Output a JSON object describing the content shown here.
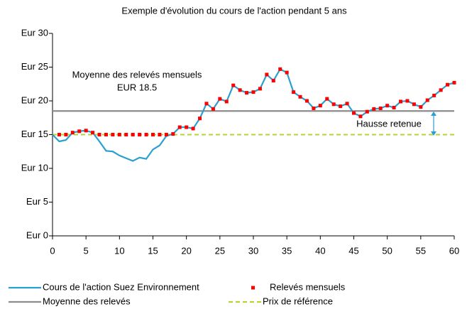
{
  "chart_data": {
    "type": "line",
    "title": "Exemple d'évolution du cours de l'action pendant 5 ans",
    "annotations": [
      "Moyenne des relevés mensuels",
      "EUR 18.5",
      "Hausse retenue"
    ],
    "xlim": [
      0,
      60
    ],
    "xticks": [
      0,
      5,
      10,
      15,
      20,
      25,
      30,
      35,
      40,
      45,
      50,
      55,
      60
    ],
    "ylim": [
      0,
      30
    ],
    "yticks": [
      {
        "value": 0,
        "label": "Eur 0"
      },
      {
        "value": 5,
        "label": "Eur 5"
      },
      {
        "value": 10,
        "label": "Eur 10"
      },
      {
        "value": 15,
        "label": "Eur 15"
      },
      {
        "value": 20,
        "label": "Eur 20"
      },
      {
        "value": 25,
        "label": "Eur 25"
      },
      {
        "value": 30,
        "label": "Eur 30"
      }
    ],
    "series": [
      {
        "name": "Cours de l'action Suez Environnement",
        "color": "#2a9fd0",
        "style": "line",
        "x": [
          0,
          1,
          2,
          3,
          4,
          5,
          6,
          7,
          8,
          9,
          10,
          11,
          12,
          13,
          14,
          15,
          16,
          17,
          18,
          19,
          20,
          21,
          22,
          23,
          24,
          25,
          26,
          27,
          28,
          29,
          30,
          31,
          32,
          33,
          34,
          35,
          36,
          37,
          38,
          39,
          40,
          41,
          42,
          43,
          44,
          45,
          46,
          47,
          48,
          49,
          50,
          51,
          52,
          53,
          54,
          55,
          56,
          57,
          58,
          59,
          60
        ],
        "values": [
          15,
          14,
          14.2,
          15.3,
          15.5,
          15.6,
          15.3,
          14,
          12.6,
          12.5,
          11.9,
          11.5,
          11.1,
          11.6,
          11.4,
          12.8,
          13.4,
          14.8,
          15.1,
          16.1,
          16.1,
          15.9,
          17.4,
          19.6,
          18.8,
          20.3,
          19.9,
          22.3,
          21.6,
          21.2,
          21.3,
          21.8,
          23.9,
          23,
          24.7,
          24.2,
          21.3,
          20.6,
          20,
          18.9,
          19.3,
          20.3,
          19.5,
          19.2,
          19.6,
          18.2,
          17.7,
          18.4,
          18.8,
          18.9,
          19.3,
          19,
          19.9,
          20,
          19.5,
          19.1,
          20.1,
          20.8,
          21.6,
          22.4,
          22.7
        ]
      },
      {
        "name": "Relevés mensuels",
        "color": "#ff0000",
        "style": "markers",
        "x": [
          1,
          2,
          3,
          4,
          5,
          6,
          7,
          8,
          9,
          10,
          11,
          12,
          13,
          14,
          15,
          16,
          17,
          18,
          19,
          20,
          21,
          22,
          23,
          24,
          25,
          26,
          27,
          28,
          29,
          30,
          31,
          32,
          33,
          34,
          35,
          36,
          37,
          38,
          39,
          40,
          41,
          42,
          43,
          44,
          45,
          46,
          47,
          48,
          49,
          50,
          51,
          52,
          53,
          54,
          55,
          56,
          57,
          58,
          59,
          60
        ],
        "values": [
          15,
          15,
          15.3,
          15.5,
          15.6,
          15.3,
          15,
          15,
          15,
          15,
          15,
          15,
          15,
          15,
          15,
          15,
          15,
          15.1,
          16.1,
          16.1,
          15.9,
          17.4,
          19.6,
          18.8,
          20.3,
          19.9,
          22.3,
          21.6,
          21.2,
          21.3,
          21.8,
          23.9,
          23,
          24.7,
          24.2,
          21.3,
          20.6,
          20,
          18.9,
          19.3,
          20.3,
          19.5,
          19.2,
          19.6,
          18.2,
          17.7,
          18.4,
          18.8,
          18.9,
          19.3,
          19,
          19.9,
          20,
          19.5,
          19.1,
          20.1,
          20.8,
          21.6,
          22.4,
          22.7
        ]
      },
      {
        "name": "Moyenne des relevés",
        "color": "#8c8c8c",
        "style": "line",
        "x": [
          0,
          60
        ],
        "values": [
          18.5,
          18.5
        ]
      },
      {
        "name": "Prix de référence",
        "color": "#b5d334",
        "style": "dashed",
        "x": [
          0,
          60
        ],
        "values": [
          15,
          15
        ]
      }
    ]
  }
}
